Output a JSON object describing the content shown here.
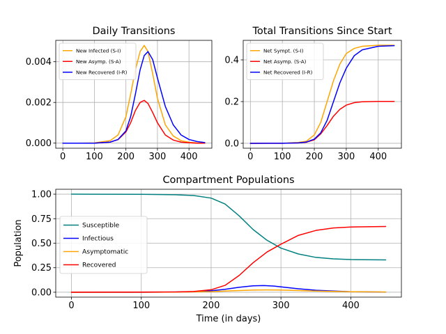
{
  "chart_data": [
    {
      "type": "line",
      "title": "Daily Transitions",
      "xlabel": "",
      "ylabel": "",
      "xlim": [
        -22.5,
        472.5
      ],
      "ylim": [
        -0.00025,
        0.00505
      ],
      "xticks": [
        0,
        100,
        200,
        300,
        400
      ],
      "xtick_labels": [
        "0",
        "100",
        "200",
        "300",
        "400"
      ],
      "yticks": [
        0,
        0.002,
        0.004
      ],
      "ytick_labels": [
        "0.000",
        "0.002",
        "0.004"
      ],
      "grid": true,
      "legend_position": "top-left",
      "series": [
        {
          "name": "New Infected (S-I)",
          "color": "#ffa500",
          "x": [
            0,
            50,
            100,
            150,
            175,
            200,
            215,
            230,
            245,
            258,
            270,
            285,
            300,
            325,
            350,
            375,
            400,
            425,
            450
          ],
          "y": [
            0,
            0,
            1e-05,
            0.00012,
            0.0004,
            0.0013,
            0.0024,
            0.0036,
            0.0045,
            0.0048,
            0.0045,
            0.0034,
            0.0022,
            0.0009,
            0.00035,
            0.00012,
            4e-05,
            1e-05,
            0
          ]
        },
        {
          "name": "New Asymp. (S-A)",
          "color": "#ff0000",
          "x": [
            0,
            50,
            100,
            150,
            175,
            200,
            215,
            230,
            245,
            258,
            270,
            285,
            300,
            325,
            350,
            375,
            400,
            425,
            450
          ],
          "y": [
            0,
            0,
            0,
            5e-05,
            0.00017,
            0.00055,
            0.001,
            0.0016,
            0.002,
            0.0021,
            0.00195,
            0.0015,
            0.001,
            0.0004,
            0.00015,
            5e-05,
            2e-05,
            0,
            0
          ]
        },
        {
          "name": "New Recovered (I-R)",
          "color": "#0000ff",
          "x": [
            0,
            50,
            100,
            150,
            175,
            200,
            215,
            230,
            245,
            258,
            270,
            285,
            300,
            325,
            350,
            375,
            400,
            425,
            450
          ],
          "y": [
            0,
            0,
            0,
            5e-05,
            0.00018,
            0.0006,
            0.0013,
            0.0024,
            0.0036,
            0.0043,
            0.0045,
            0.0041,
            0.0032,
            0.0018,
            0.0009,
            0.0004,
            0.00018,
            8e-05,
            3e-05
          ]
        }
      ]
    },
    {
      "type": "line",
      "title": "Total Transitions Since Start",
      "xlabel": "",
      "ylabel": "",
      "xlim": [
        -22.5,
        472.5
      ],
      "ylim": [
        -0.0235,
        0.4935
      ],
      "xticks": [
        0,
        100,
        200,
        300,
        400
      ],
      "xtick_labels": [
        "0",
        "100",
        "200",
        "300",
        "400"
      ],
      "yticks": [
        0,
        0.2,
        0.4
      ],
      "ytick_labels": [
        "0.0",
        "0.2",
        "0.4"
      ],
      "grid": true,
      "legend_position": "top-left",
      "series": [
        {
          "name": "Net Sympt. (S-I)",
          "color": "#ffa500",
          "x": [
            0,
            100,
            150,
            175,
            200,
            220,
            240,
            260,
            280,
            300,
            325,
            350,
            400,
            450
          ],
          "y": [
            0,
            0.0003,
            0.004,
            0.01,
            0.04,
            0.1,
            0.2,
            0.3,
            0.38,
            0.43,
            0.455,
            0.465,
            0.47,
            0.47
          ]
        },
        {
          "name": "Net Asymp. (S-A)",
          "color": "#ff0000",
          "x": [
            0,
            100,
            150,
            175,
            200,
            220,
            240,
            260,
            280,
            300,
            325,
            350,
            400,
            450
          ],
          "y": [
            0,
            0.0001,
            0.002,
            0.005,
            0.017,
            0.045,
            0.085,
            0.13,
            0.163,
            0.183,
            0.195,
            0.199,
            0.201,
            0.201
          ]
        },
        {
          "name": "Net Recovered (I-R)",
          "color": "#0000ff",
          "x": [
            0,
            100,
            150,
            175,
            200,
            220,
            240,
            260,
            280,
            300,
            325,
            350,
            400,
            450
          ],
          "y": [
            0,
            0.0001,
            0.002,
            0.006,
            0.02,
            0.05,
            0.11,
            0.2,
            0.29,
            0.36,
            0.42,
            0.448,
            0.465,
            0.468
          ]
        }
      ]
    },
    {
      "type": "line",
      "title": "Compartment Populations",
      "xlabel": "Time (in days)",
      "ylabel": "Population",
      "xlim": [
        -22.5,
        472.5
      ],
      "ylim": [
        -0.05,
        1.05
      ],
      "xticks": [
        0,
        100,
        200,
        300,
        400
      ],
      "xtick_labels": [
        "0",
        "100",
        "200",
        "300",
        "400"
      ],
      "yticks": [
        0,
        0.25,
        0.5,
        0.75,
        1.0
      ],
      "ytick_labels": [
        "0.00",
        "0.25",
        "0.50",
        "0.75",
        "1.00"
      ],
      "grid": true,
      "legend_position": "center-left",
      "series": [
        {
          "name": "Susceptible",
          "color": "#008080",
          "x": [
            0,
            100,
            150,
            175,
            200,
            220,
            240,
            260,
            280,
            300,
            325,
            350,
            375,
            400,
            450
          ],
          "y": [
            1,
            0.999,
            0.994,
            0.986,
            0.96,
            0.9,
            0.78,
            0.64,
            0.53,
            0.45,
            0.39,
            0.355,
            0.34,
            0.333,
            0.33
          ]
        },
        {
          "name": "Infectious",
          "color": "#0000ff",
          "x": [
            0,
            100,
            150,
            175,
            200,
            220,
            240,
            260,
            275,
            290,
            300,
            325,
            350,
            400,
            450
          ],
          "y": [
            0,
            0,
            0.002,
            0.005,
            0.015,
            0.03,
            0.05,
            0.065,
            0.068,
            0.063,
            0.055,
            0.035,
            0.02,
            0.005,
            0.001
          ]
        },
        {
          "name": "Asymptomatic",
          "color": "#ffa500",
          "x": [
            0,
            100,
            150,
            200,
            230,
            260,
            280,
            300,
            325,
            350,
            400,
            450
          ],
          "y": [
            0,
            0,
            0.001,
            0.006,
            0.015,
            0.022,
            0.024,
            0.022,
            0.017,
            0.012,
            0.005,
            0.002
          ]
        },
        {
          "name": "Recovered",
          "color": "#ff0000",
          "x": [
            0,
            100,
            150,
            175,
            200,
            220,
            240,
            260,
            280,
            300,
            325,
            350,
            375,
            400,
            450
          ],
          "y": [
            0,
            0.001,
            0.003,
            0.008,
            0.025,
            0.07,
            0.17,
            0.3,
            0.41,
            0.49,
            0.58,
            0.63,
            0.655,
            0.665,
            0.67
          ]
        }
      ]
    }
  ]
}
